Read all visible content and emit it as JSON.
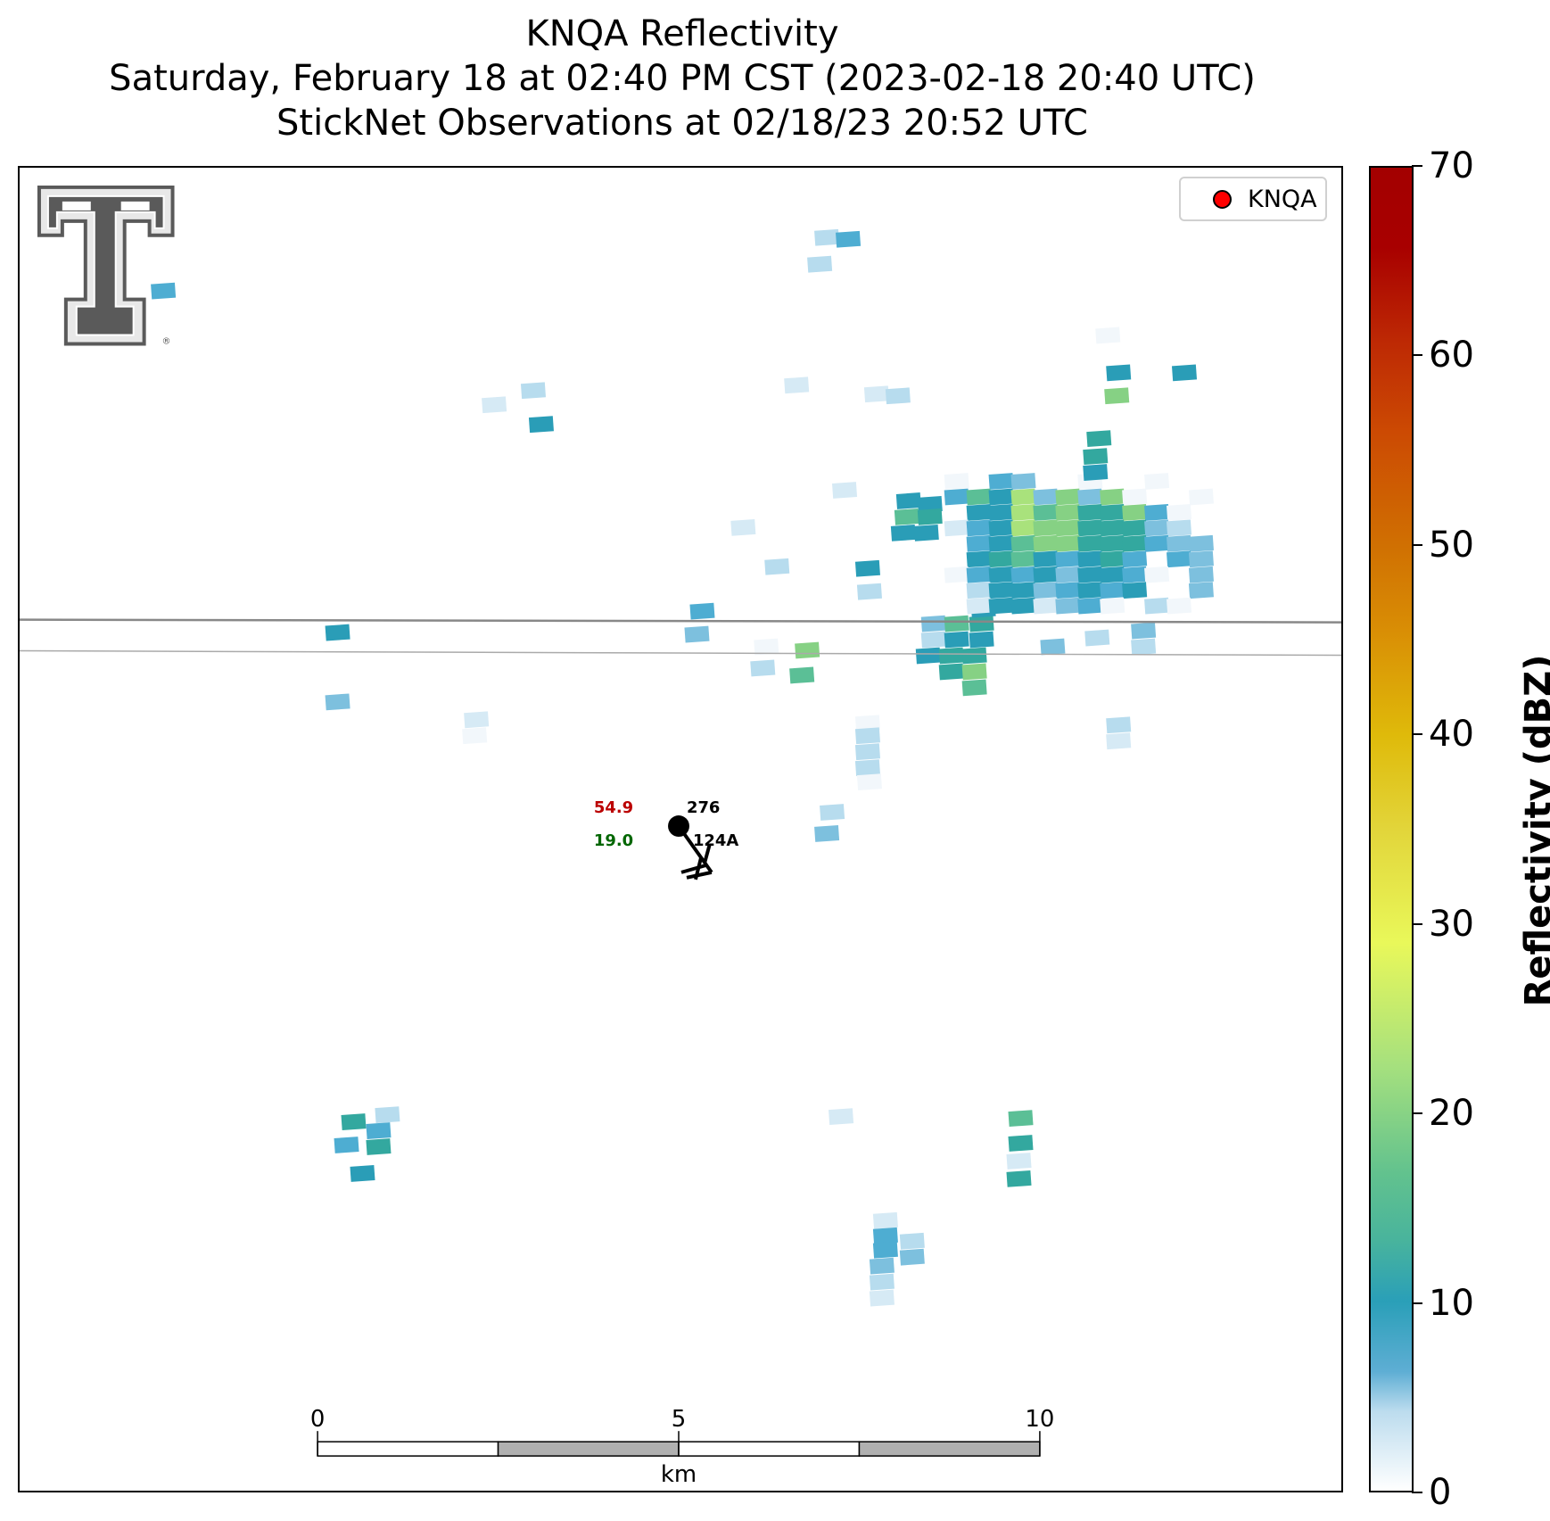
{
  "title": {
    "line1": "KNQA Reflectivity",
    "line2": "Saturday, February 18 at 02:40 PM CST (2023-02-18 20:40 UTC)",
    "line3": "StickNet Observations at 02/18/23 20:52 UTC"
  },
  "legend": {
    "entry": "KNQA",
    "marker_color": "#ff0000"
  },
  "colorbar": {
    "label": "Reflectivity (dBZ)",
    "ticks": [
      "0",
      "10",
      "20",
      "30",
      "40",
      "50",
      "60",
      "70"
    ],
    "range": [
      0,
      70
    ]
  },
  "scalebar": {
    "ticks": [
      "0",
      "5",
      "10"
    ],
    "unit": "km",
    "range_km": [
      0,
      10
    ]
  },
  "station": {
    "temperature": "54.9",
    "dewpoint": "19.0",
    "value": "276",
    "id": "124A",
    "temperature_color": "#bb0000",
    "dewpoint_color": "#006600"
  },
  "logo": {
    "name": "texas-tech-double-t-logo",
    "text": "®"
  }
}
